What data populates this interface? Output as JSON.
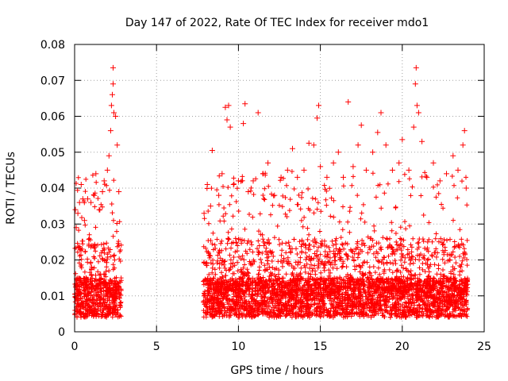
{
  "chart_data": {
    "type": "scatter",
    "title": "Day 147 of 2022, Rate Of TEC Index for receiver mdo1",
    "xlabel": "GPS time / hours",
    "ylabel": "ROTI / TECUs",
    "xlim": [
      0,
      25
    ],
    "ylim": [
      0,
      0.08
    ],
    "xticks": [
      "0",
      "5",
      "10",
      "15",
      "20",
      "25"
    ],
    "yticks": [
      "0",
      "0.01",
      "0.02",
      "0.03",
      "0.04",
      "0.05",
      "0.06",
      "0.07",
      "0.08"
    ],
    "grid": true,
    "marker": "+",
    "color": "#ff0000",
    "series": [
      {
        "x_range_segments": [
          [
            0.0,
            2.85
          ],
          [
            7.85,
            24.0
          ]
        ],
        "typical_band": [
          0.004,
          0.03
        ],
        "points": [
          {
            "x": 0.05,
            "y": 0.034
          },
          {
            "x": 0.1,
            "y": 0.029
          },
          {
            "x": 0.2,
            "y": 0.033
          },
          {
            "x": 0.3,
            "y": 0.036
          },
          {
            "x": 0.4,
            "y": 0.041
          },
          {
            "x": 0.5,
            "y": 0.037
          },
          {
            "x": 0.6,
            "y": 0.031
          },
          {
            "x": 0.8,
            "y": 0.037
          },
          {
            "x": 1.0,
            "y": 0.036
          },
          {
            "x": 1.2,
            "y": 0.038
          },
          {
            "x": 1.3,
            "y": 0.044
          },
          {
            "x": 1.5,
            "y": 0.034
          },
          {
            "x": 1.7,
            "y": 0.039
          },
          {
            "x": 1.8,
            "y": 0.042
          },
          {
            "x": 2.0,
            "y": 0.045
          },
          {
            "x": 2.1,
            "y": 0.049
          },
          {
            "x": 2.2,
            "y": 0.056
          },
          {
            "x": 2.25,
            "y": 0.063
          },
          {
            "x": 2.3,
            "y": 0.066
          },
          {
            "x": 2.35,
            "y": 0.0735
          },
          {
            "x": 2.35,
            "y": 0.069
          },
          {
            "x": 2.4,
            "y": 0.061
          },
          {
            "x": 2.5,
            "y": 0.06
          },
          {
            "x": 2.6,
            "y": 0.052
          },
          {
            "x": 2.7,
            "y": 0.039
          },
          {
            "x": 7.9,
            "y": 0.033
          },
          {
            "x": 8.1,
            "y": 0.041
          },
          {
            "x": 8.3,
            "y": 0.035
          },
          {
            "x": 8.4,
            "y": 0.0505
          },
          {
            "x": 8.8,
            "y": 0.038
          },
          {
            "x": 9.0,
            "y": 0.044
          },
          {
            "x": 9.2,
            "y": 0.0625
          },
          {
            "x": 9.3,
            "y": 0.059
          },
          {
            "x": 9.4,
            "y": 0.063
          },
          {
            "x": 9.5,
            "y": 0.057
          },
          {
            "x": 9.7,
            "y": 0.041
          },
          {
            "x": 10.0,
            "y": 0.042
          },
          {
            "x": 10.3,
            "y": 0.058
          },
          {
            "x": 10.4,
            "y": 0.0635
          },
          {
            "x": 10.6,
            "y": 0.039
          },
          {
            "x": 10.9,
            "y": 0.042
          },
          {
            "x": 11.2,
            "y": 0.061
          },
          {
            "x": 11.5,
            "y": 0.044
          },
          {
            "x": 11.8,
            "y": 0.047
          },
          {
            "x": 12.2,
            "y": 0.038
          },
          {
            "x": 12.6,
            "y": 0.043
          },
          {
            "x": 13.0,
            "y": 0.045
          },
          {
            "x": 13.3,
            "y": 0.051
          },
          {
            "x": 13.6,
            "y": 0.043
          },
          {
            "x": 14.0,
            "y": 0.045
          },
          {
            "x": 14.3,
            "y": 0.0525
          },
          {
            "x": 14.6,
            "y": 0.052
          },
          {
            "x": 14.8,
            "y": 0.0595
          },
          {
            "x": 14.9,
            "y": 0.063
          },
          {
            "x": 15.0,
            "y": 0.046
          },
          {
            "x": 15.4,
            "y": 0.043
          },
          {
            "x": 15.8,
            "y": 0.047
          },
          {
            "x": 16.1,
            "y": 0.05
          },
          {
            "x": 16.4,
            "y": 0.043
          },
          {
            "x": 16.7,
            "y": 0.064
          },
          {
            "x": 17.0,
            "y": 0.046
          },
          {
            "x": 17.3,
            "y": 0.052
          },
          {
            "x": 17.5,
            "y": 0.0575
          },
          {
            "x": 17.8,
            "y": 0.045
          },
          {
            "x": 18.2,
            "y": 0.05
          },
          {
            "x": 18.5,
            "y": 0.0555
          },
          {
            "x": 18.7,
            "y": 0.061
          },
          {
            "x": 19.0,
            "y": 0.052
          },
          {
            "x": 19.4,
            "y": 0.045
          },
          {
            "x": 19.8,
            "y": 0.047
          },
          {
            "x": 20.0,
            "y": 0.0535
          },
          {
            "x": 20.4,
            "y": 0.045
          },
          {
            "x": 20.7,
            "y": 0.057
          },
          {
            "x": 20.8,
            "y": 0.069
          },
          {
            "x": 20.85,
            "y": 0.0735
          },
          {
            "x": 20.9,
            "y": 0.063
          },
          {
            "x": 21.0,
            "y": 0.061
          },
          {
            "x": 21.2,
            "y": 0.053
          },
          {
            "x": 21.5,
            "y": 0.043
          },
          {
            "x": 21.9,
            "y": 0.047
          },
          {
            "x": 22.3,
            "y": 0.042
          },
          {
            "x": 22.7,
            "y": 0.044
          },
          {
            "x": 23.1,
            "y": 0.049
          },
          {
            "x": 23.4,
            "y": 0.045
          },
          {
            "x": 23.7,
            "y": 0.052
          },
          {
            "x": 23.8,
            "y": 0.056
          },
          {
            "x": 23.9,
            "y": 0.04
          }
        ]
      }
    ]
  }
}
